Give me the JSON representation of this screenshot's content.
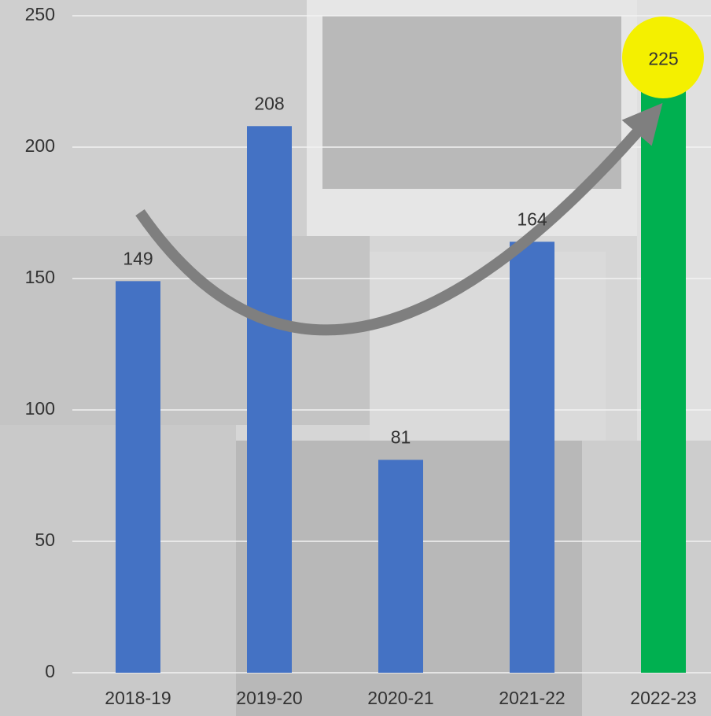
{
  "chart_data": {
    "type": "bar",
    "categories": [
      "2018-19",
      "2019-20",
      "2020-21",
      "2021-22",
      "2022-23"
    ],
    "values": [
      149,
      208,
      81,
      164,
      225
    ],
    "colors": [
      "#4472c4",
      "#4472c4",
      "#4472c4",
      "#4472c4",
      "#00b050"
    ],
    "ylim": [
      0,
      250
    ],
    "yticks": [
      0,
      50,
      100,
      150,
      200,
      250
    ],
    "grid": true
  }
}
